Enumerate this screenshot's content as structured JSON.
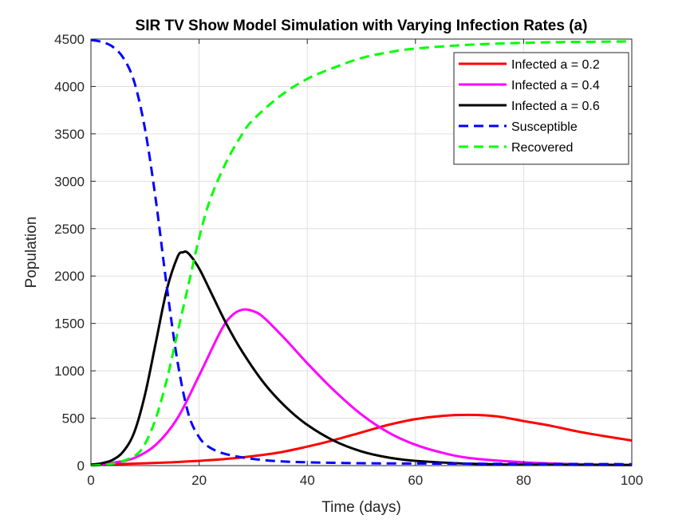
{
  "chart_data": {
    "type": "line",
    "title": "SIR TV Show Model Simulation with Varying Infection Rates (a)",
    "xlabel": "Time (days)",
    "ylabel": "Population",
    "xlim": [
      0,
      100
    ],
    "ylim": [
      0,
      4500
    ],
    "xticks": [
      0,
      20,
      40,
      60,
      80,
      100
    ],
    "yticks": [
      0,
      500,
      1000,
      1500,
      2000,
      2500,
      3000,
      3500,
      4000,
      4500
    ],
    "grid": true,
    "legend_position": "top-right",
    "series": [
      {
        "name": "Infected a = 0.2",
        "color": "#ff0000",
        "dash": "solid",
        "x": [
          0,
          5,
          10,
          15,
          20,
          25,
          30,
          35,
          40,
          45,
          50,
          55,
          60,
          65,
          70,
          75,
          80,
          85,
          90,
          95,
          100
        ],
        "y": [
          10,
          16,
          24,
          35,
          50,
          70,
          100,
          140,
          200,
          270,
          350,
          430,
          490,
          525,
          535,
          520,
          470,
          420,
          360,
          310,
          265
        ]
      },
      {
        "name": "Infected a = 0.4",
        "color": "#ff00ff",
        "dash": "solid",
        "x": [
          0,
          4,
          8,
          12,
          16,
          20,
          24,
          26,
          28,
          30,
          32,
          36,
          40,
          45,
          50,
          55,
          60,
          65,
          70,
          80,
          90,
          100
        ],
        "y": [
          10,
          30,
          80,
          220,
          500,
          950,
          1420,
          1580,
          1645,
          1630,
          1560,
          1330,
          1080,
          790,
          540,
          350,
          220,
          135,
          80,
          35,
          15,
          8
        ]
      },
      {
        "name": "Infected a = 0.6",
        "color": "#000000",
        "dash": "solid",
        "x": [
          0,
          2,
          4,
          6,
          8,
          10,
          12,
          14,
          16,
          17,
          18,
          20,
          22,
          25,
          28,
          32,
          36,
          40,
          45,
          50,
          55,
          60,
          70,
          80,
          100
        ],
        "y": [
          10,
          25,
          60,
          150,
          350,
          750,
          1300,
          1850,
          2200,
          2250,
          2240,
          2080,
          1850,
          1500,
          1200,
          870,
          620,
          430,
          260,
          150,
          85,
          50,
          20,
          10,
          5
        ]
      },
      {
        "name": "Susceptible",
        "color": "#0000ff",
        "dash": "dashed",
        "x": [
          0,
          2,
          4,
          6,
          8,
          10,
          12,
          14,
          16,
          18,
          20,
          22,
          25,
          30,
          35,
          40,
          50,
          60,
          70,
          80,
          100
        ],
        "y": [
          4490,
          4470,
          4420,
          4300,
          4050,
          3550,
          2800,
          1900,
          1100,
          550,
          300,
          190,
          120,
          70,
          45,
          35,
          25,
          22,
          20,
          18,
          15
        ]
      },
      {
        "name": "Recovered",
        "color": "#00ff00",
        "dash": "dashed",
        "x": [
          0,
          4,
          8,
          10,
          12,
          14,
          16,
          18,
          20,
          22,
          25,
          28,
          30,
          35,
          40,
          45,
          50,
          55,
          60,
          70,
          80,
          90,
          100
        ],
        "y": [
          0,
          20,
          100,
          230,
          500,
          900,
          1400,
          1900,
          2400,
          2800,
          3200,
          3500,
          3650,
          3900,
          4080,
          4200,
          4300,
          4360,
          4400,
          4440,
          4460,
          4470,
          4475
        ]
      }
    ]
  }
}
